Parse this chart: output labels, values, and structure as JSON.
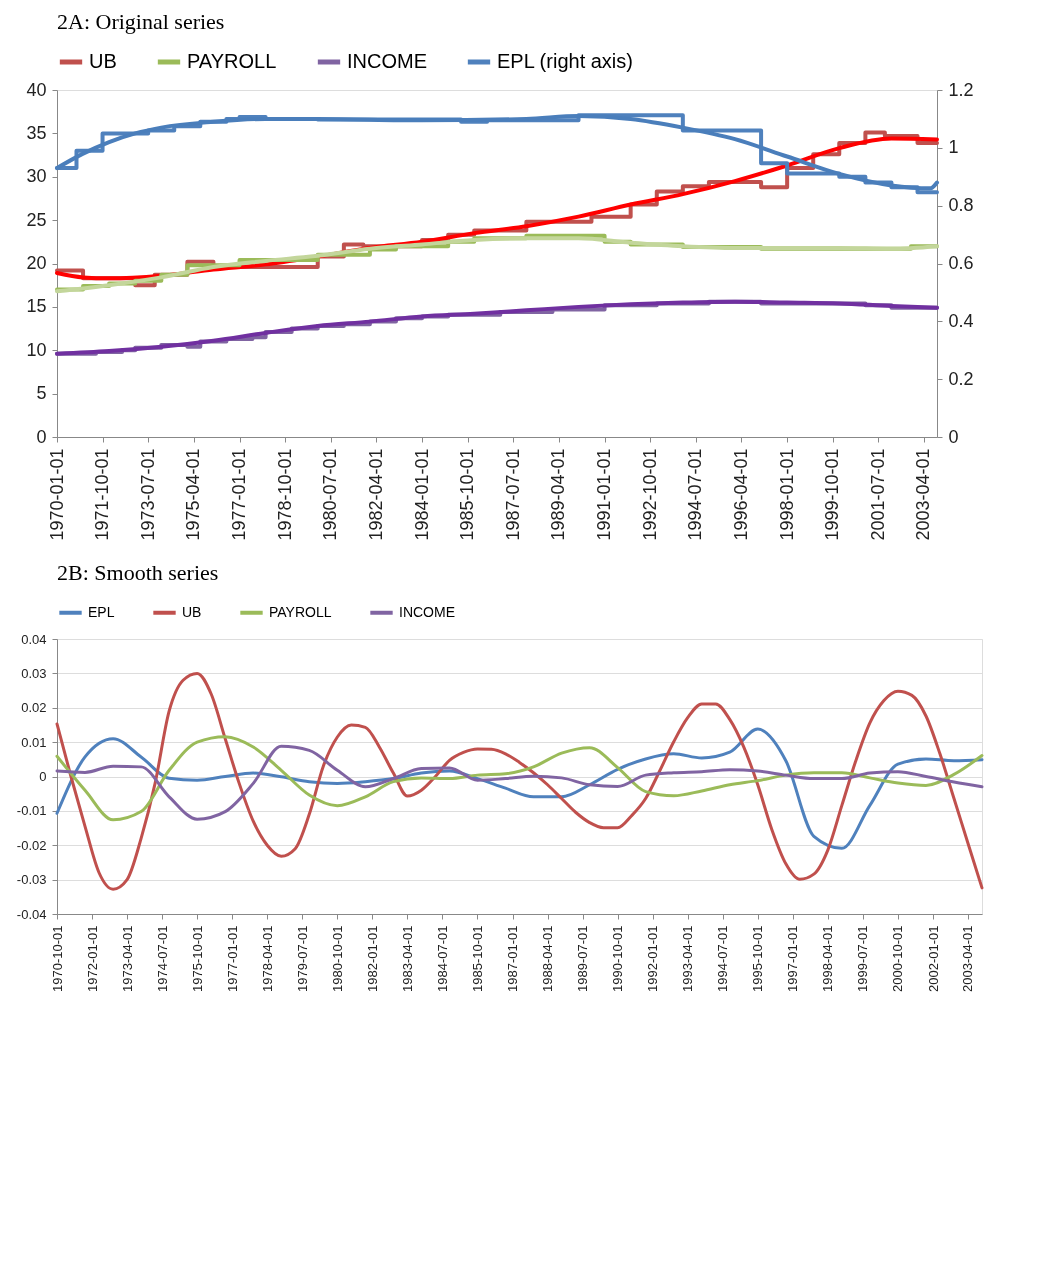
{
  "chart_data": [
    {
      "type": "line",
      "title": "2A: Original series",
      "legend": "top",
      "grid": false,
      "xlim": [
        "1970-01-01",
        "2003-10-01"
      ],
      "xticks": [
        "1970-01-01",
        "1971-10-01",
        "1973-07-01",
        "1975-04-01",
        "1977-01-01",
        "1978-10-01",
        "1980-07-01",
        "1982-04-01",
        "1984-01-01",
        "1985-10-01",
        "1987-07-01",
        "1989-04-01",
        "1991-01-01",
        "1992-10-01",
        "1994-07-01",
        "1996-04-01",
        "1998-01-01",
        "1999-10-01",
        "2001-07-01",
        "2003-04-01"
      ],
      "ylim": [
        0,
        40
      ],
      "yticks": [
        0,
        5,
        10,
        15,
        20,
        25,
        30,
        35,
        40
      ],
      "y2lim": [
        0,
        1.2
      ],
      "y2ticks": [
        0,
        0.2,
        0.4,
        0.6,
        0.8,
        1,
        1.2
      ],
      "series": [
        {
          "name": "UB",
          "type": "step",
          "color": "#c0504d",
          "x": [
            "1970-01-01",
            "1971-01-01",
            "1973-01-01",
            "1973-10-01",
            "1975-01-01",
            "1976-01-01",
            "1980-01-01",
            "1981-01-01",
            "1981-10-01",
            "1984-01-01",
            "1985-01-01",
            "1986-01-01",
            "1988-01-01",
            "1990-07-01",
            "1992-01-01",
            "1993-01-01",
            "1994-01-01",
            "1995-01-01",
            "1997-01-01",
            "1998-01-01",
            "1999-01-01",
            "2000-01-01",
            "2001-01-01",
            "2001-10-01",
            "2003-01-01",
            "2003-10-01"
          ],
          "values": [
            19.2,
            18.3,
            17.5,
            18.7,
            20.2,
            19.6,
            20.8,
            22.2,
            22.0,
            22.7,
            23.3,
            23.8,
            24.8,
            25.4,
            26.8,
            28.3,
            28.9,
            29.4,
            28.8,
            31.0,
            32.6,
            33.9,
            35.1,
            34.7,
            33.9,
            33.9
          ]
        },
        {
          "type": "line",
          "color": "#ff0000",
          "x": [
            "1970-01-01",
            "1971-01-01",
            "1972-01-01",
            "1974-01-01",
            "1976-01-01",
            "1978-01-01",
            "1980-01-01",
            "1982-01-01",
            "1984-01-01",
            "1986-01-01",
            "1988-01-01",
            "1990-01-01",
            "1992-01-01",
            "1994-01-01",
            "1996-01-01",
            "1998-01-01",
            "2000-01-01",
            "2002-01-01",
            "2003-10-01"
          ],
          "values": [
            18.9,
            18.4,
            18.3,
            18.6,
            19.3,
            19.9,
            20.8,
            21.8,
            22.5,
            23.5,
            24.3,
            25.4,
            26.8,
            28.0,
            29.5,
            31.3,
            33.3,
            34.4,
            34.3
          ]
        },
        {
          "name": "PAYROLL",
          "type": "step",
          "color": "#9bbb59",
          "x": [
            "1970-01-01",
            "1971-01-01",
            "1972-01-01",
            "1973-01-01",
            "1974-01-01",
            "1975-01-01",
            "1977-01-01",
            "1980-01-01",
            "1982-01-01",
            "1983-01-01",
            "1985-01-01",
            "1986-01-01",
            "1988-01-01",
            "1991-01-01",
            "1992-01-01",
            "1994-01-01",
            "1997-01-01",
            "2002-10-01",
            "2003-10-01"
          ],
          "values": [
            17.0,
            17.4,
            17.7,
            18.0,
            18.7,
            19.8,
            20.4,
            21.0,
            21.6,
            22.0,
            22.5,
            22.9,
            23.2,
            22.5,
            22.2,
            21.9,
            21.7,
            22.0,
            22.0
          ]
        },
        {
          "type": "line",
          "color": "#c3d69b",
          "x": [
            "1970-01-01",
            "1972-01-01",
            "1974-01-01",
            "1976-01-01",
            "1978-01-01",
            "1980-01-01",
            "1982-01-01",
            "1984-01-01",
            "1986-01-01",
            "1988-01-01",
            "1990-01-01",
            "1992-01-01",
            "1994-01-01",
            "1996-01-01",
            "2000-01-01",
            "2002-01-01",
            "2003-10-01"
          ],
          "values": [
            16.8,
            17.5,
            18.4,
            19.6,
            20.3,
            20.9,
            21.7,
            22.2,
            22.7,
            22.9,
            22.9,
            22.4,
            22.0,
            21.8,
            21.8,
            21.7,
            22.0
          ]
        },
        {
          "name": "INCOME",
          "type": "step",
          "color": "#8064a2",
          "x": [
            "1970-01-01",
            "1971-07-01",
            "1972-07-01",
            "1973-01-01",
            "1974-01-01",
            "1975-01-01",
            "1975-07-01",
            "1976-07-01",
            "1977-07-01",
            "1978-01-01",
            "1979-01-01",
            "1980-01-01",
            "1981-01-01",
            "1982-01-01",
            "1983-01-01",
            "1984-01-01",
            "1985-01-01",
            "1987-01-01",
            "1989-01-01",
            "1991-01-01",
            "1993-01-01",
            "1995-01-01",
            "1997-01-01",
            "2001-01-01",
            "2002-01-01",
            "2003-10-01"
          ],
          "values": [
            9.6,
            9.8,
            10.0,
            10.3,
            10.6,
            10.4,
            11.0,
            11.3,
            11.5,
            12.1,
            12.5,
            12.8,
            13.0,
            13.3,
            13.7,
            13.9,
            14.1,
            14.4,
            14.7,
            15.2,
            15.4,
            15.6,
            15.4,
            15.2,
            14.9,
            14.9
          ]
        },
        {
          "type": "line",
          "color": "#7030a0",
          "x": [
            "1970-01-01",
            "1972-01-01",
            "1974-01-01",
            "1976-01-01",
            "1978-01-01",
            "1980-01-01",
            "1982-01-01",
            "1984-01-01",
            "1986-01-01",
            "1988-01-01",
            "1990-01-01",
            "1992-01-01",
            "1994-01-01",
            "1996-01-01",
            "1998-01-01",
            "2000-01-01",
            "2002-01-01",
            "2003-10-01"
          ],
          "values": [
            9.6,
            9.9,
            10.4,
            11.1,
            12.0,
            12.8,
            13.3,
            13.9,
            14.2,
            14.6,
            15.0,
            15.3,
            15.5,
            15.6,
            15.5,
            15.4,
            15.1,
            14.9
          ]
        },
        {
          "name": "EPL (right axis)",
          "type": "step",
          "axis": "y2",
          "color": "#4f81bd",
          "x": [
            "1970-01-01",
            "1970-10-01",
            "1971-10-01",
            "1973-07-01",
            "1974-07-01",
            "1975-07-01",
            "1976-07-01",
            "1977-01-01",
            "1978-01-01",
            "1980-01-01",
            "1985-07-01",
            "1986-07-01",
            "1990-01-01",
            "1994-01-01",
            "1997-01-01",
            "1998-01-01",
            "2000-01-01",
            "2001-01-01",
            "2002-01-01",
            "2003-01-01",
            "2003-10-01"
          ],
          "values": [
            0.93,
            0.99,
            1.05,
            1.06,
            1.075,
            1.09,
            1.1,
            1.107,
            1.1,
            1.098,
            1.09,
            1.095,
            1.113,
            1.06,
            0.947,
            0.911,
            0.9,
            0.88,
            0.864,
            0.846,
            0.846
          ]
        },
        {
          "type": "line",
          "axis": "y2",
          "color": "#4a7ebb",
          "x": [
            "1970-01-01",
            "1971-01-01",
            "1972-01-01",
            "1973-01-01",
            "1974-01-01",
            "1976-01-01",
            "1978-01-01",
            "1980-01-01",
            "1984-01-01",
            "1988-01-01",
            "1990-01-01",
            "1992-01-01",
            "1994-01-01",
            "1996-01-01",
            "1998-01-01",
            "2000-01-01",
            "2002-01-01",
            "2003-07-01",
            "2003-10-01"
          ],
          "values": [
            0.93,
            0.98,
            1.02,
            1.05,
            1.07,
            1.09,
            1.1,
            1.1,
            1.095,
            1.1,
            1.11,
            1.1,
            1.07,
            1.03,
            0.97,
            0.91,
            0.87,
            0.86,
            0.88
          ]
        }
      ]
    },
    {
      "type": "line",
      "title": "2B: Smooth series",
      "legend": "top",
      "grid": "y",
      "xlim": [
        "1970-10-01",
        "2003-10-01"
      ],
      "xticks": [
        "1970-10-01",
        "1972-01-01",
        "1973-04-01",
        "1974-07-01",
        "1975-10-01",
        "1977-01-01",
        "1978-04-01",
        "1979-07-01",
        "1980-10-01",
        "1982-01-01",
        "1983-04-01",
        "1984-07-01",
        "1985-10-01",
        "1987-01-01",
        "1988-04-01",
        "1989-07-01",
        "1990-10-01",
        "1992-01-01",
        "1993-04-01",
        "1994-07-01",
        "1995-10-01",
        "1997-01-01",
        "1998-04-01",
        "1999-07-01",
        "2000-10-01",
        "2002-01-01",
        "2003-04-01"
      ],
      "ylim": [
        -0.04,
        0.04
      ],
      "yticks": [
        -0.04,
        -0.03,
        -0.02,
        -0.01,
        0,
        0.01,
        0.02,
        0.03,
        0.04
      ],
      "x": [
        "1970-10-01",
        "1971-10-01",
        "1972-10-01",
        "1973-10-01",
        "1974-10-01",
        "1975-10-01",
        "1976-10-01",
        "1977-10-01",
        "1978-10-01",
        "1979-10-01",
        "1980-10-01",
        "1981-10-01",
        "1982-10-01",
        "1983-10-01",
        "1984-10-01",
        "1985-10-01",
        "1986-10-01",
        "1987-10-01",
        "1988-10-01",
        "1989-10-01",
        "1990-10-01",
        "1991-10-01",
        "1992-10-01",
        "1993-10-01",
        "1994-10-01",
        "1995-10-01",
        "1996-10-01",
        "1997-10-01",
        "1998-10-01",
        "1999-10-01",
        "2000-10-01",
        "2001-10-01",
        "2002-10-01",
        "2003-10-01"
      ],
      "series": [
        {
          "name": "EPL",
          "color": "#4f81bd",
          "values": [
            -0.0107,
            0.0057,
            0.011,
            0.0057,
            -0.0005,
            -0.0011,
            0.0,
            0.001,
            -0.0001,
            -0.0015,
            -0.002,
            -0.0015,
            -0.0006,
            0.001,
            0.0016,
            -0.0006,
            -0.0034,
            -0.0059,
            -0.0059,
            -0.0024,
            0.0021,
            0.0051,
            0.0066,
            0.0054,
            0.0071,
            0.0138,
            0.0046,
            -0.0174,
            -0.0209,
            -0.0084,
            0.0036,
            0.0051,
            0.0046,
            0.0049
          ]
        },
        {
          "name": "UB",
          "color": "#c0504d",
          "x": [
            "1970-10-01",
            "1971-04-01",
            "1971-10-01",
            "1972-04-01",
            "1972-10-01",
            "1973-04-01",
            "1973-10-01",
            "1974-04-01",
            "1974-10-01",
            "1975-04-01",
            "1975-10-01",
            "1976-04-01",
            "1976-10-01",
            "1977-04-01",
            "1977-10-01",
            "1978-04-01",
            "1978-10-01",
            "1979-04-01",
            "1979-10-01",
            "1980-04-01",
            "1980-10-01",
            "1981-04-01",
            "1981-10-01",
            "1982-04-01",
            "1982-10-01",
            "1983-04-01",
            "1983-10-01",
            "1984-04-01",
            "1984-10-01",
            "1985-04-01",
            "1985-10-01",
            "1986-04-01",
            "1986-10-01",
            "1987-04-01",
            "1987-10-01",
            "1988-04-01",
            "1988-10-01",
            "1989-04-01",
            "1989-10-01",
            "1990-04-01",
            "1990-10-01",
            "1991-04-01",
            "1991-10-01",
            "1992-04-01",
            "1992-10-01",
            "1993-04-01",
            "1993-10-01",
            "1994-04-01",
            "1994-10-01",
            "1995-04-01",
            "1995-10-01",
            "1996-04-01",
            "1996-10-01",
            "1997-04-01",
            "1997-10-01",
            "1998-04-01",
            "1998-10-01",
            "1999-04-01",
            "1999-10-01",
            "2000-04-01",
            "2000-10-01",
            "2001-04-01",
            "2001-10-01",
            "2002-04-01",
            "2002-10-01",
            "2003-04-01",
            "2003-10-01"
          ],
          "values": [
            0.0153,
            0.0,
            -0.0145,
            -0.028,
            -0.0328,
            -0.03,
            -0.018,
            -0.002,
            0.019,
            0.028,
            0.03,
            0.024,
            0.011,
            -0.002,
            -0.013,
            -0.02,
            -0.0232,
            -0.021,
            -0.011,
            0.003,
            0.0115,
            0.015,
            0.0143,
            0.0086,
            0.001,
            -0.0057,
            -0.004,
            0.0,
            0.0047,
            0.007,
            0.008,
            0.0079,
            0.0066,
            0.0041,
            0.0011,
            -0.0024,
            -0.0064,
            -0.0104,
            -0.0134,
            -0.0149,
            -0.0149,
            -0.0114,
            -0.0064,
            0.0016,
            0.0101,
            0.0171,
            0.0211,
            0.0211,
            0.0166,
            0.0086,
            -0.0024,
            -0.0154,
            -0.0254,
            -0.0299,
            -0.0284,
            -0.0214,
            -0.0084,
            0.0046,
            0.0156,
            0.0221,
            0.0248,
            0.0236,
            0.0176,
            0.0066,
            -0.0064,
            -0.0194,
            -0.0324
          ]
        },
        {
          "name": "PAYROLL",
          "color": "#9bbb59",
          "values": [
            0.0059,
            -0.004,
            -0.0126,
            -0.0102,
            0.0018,
            0.01,
            0.0116,
            0.0086,
            0.0018,
            -0.0054,
            -0.0085,
            -0.0059,
            -0.0015,
            -0.0004,
            -0.0006,
            0.0004,
            0.0008,
            0.0028,
            0.0068,
            0.0084,
            0.0026,
            -0.0044,
            -0.0056,
            -0.0042,
            -0.0024,
            -0.0012,
            0.0004,
            0.0011,
            0.0011,
            -0.0004,
            -0.0019,
            -0.0026,
            0.0006,
            0.0061
          ]
        },
        {
          "name": "INCOME",
          "color": "#8064a2",
          "values": [
            0.0016,
            0.0012,
            0.003,
            0.0028,
            -0.0059,
            -0.0124,
            -0.0102,
            -0.002,
            0.0088,
            0.0076,
            0.0018,
            -0.003,
            -0.0006,
            0.0023,
            0.0025,
            -0.0011,
            -0.0006,
            0.0001,
            -0.0004,
            -0.0024,
            -0.0029,
            0.0004,
            0.0011,
            0.0014,
            0.002,
            0.0016,
            0.0004,
            -0.0006,
            -0.0006,
            0.001,
            0.0014,
            0.0,
            -0.0016,
            -0.003
          ]
        }
      ]
    }
  ]
}
